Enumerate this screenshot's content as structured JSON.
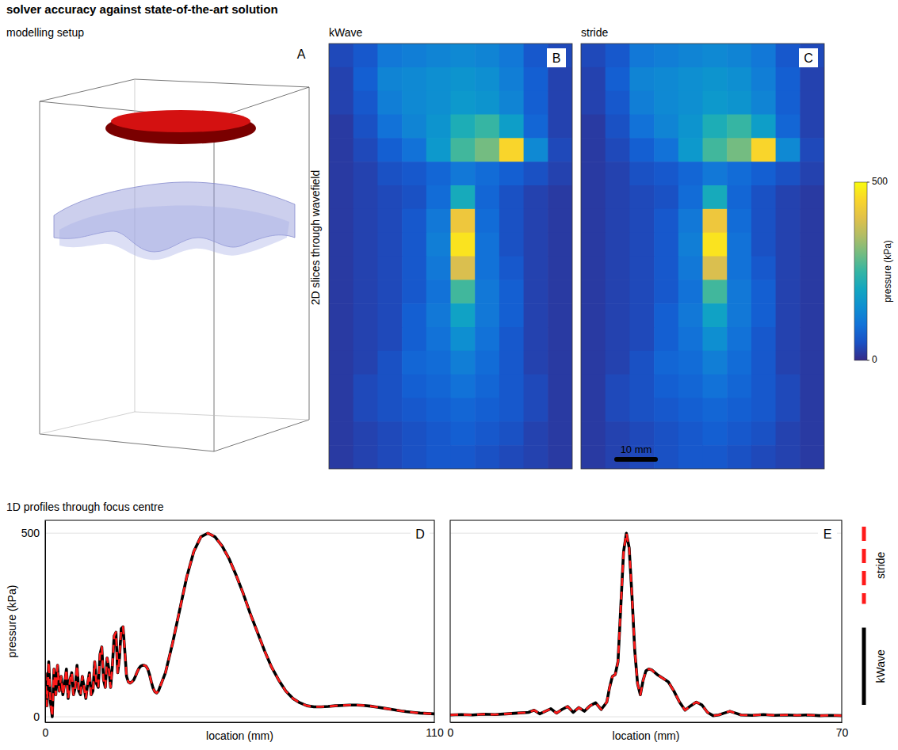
{
  "title": "solver accuracy against state-of-the-art solution",
  "sections": [
    "2D slices through wavefield",
    "1D profiles through focus centre"
  ],
  "setup": {
    "title": "modelling setup",
    "panel_label": "A"
  },
  "colorbar": {
    "range": [
      0,
      500
    ],
    "ticks": [
      0,
      500
    ],
    "label": "pressure (kPa)"
  },
  "chart_data": [
    {
      "type": "heatmap",
      "title": "kWave",
      "panel_label": "B",
      "tick_labels": false,
      "values": [
        [
          40,
          60,
          110,
          120,
          130,
          140,
          130,
          110,
          60,
          40
        ],
        [
          30,
          70,
          130,
          140,
          150,
          160,
          150,
          120,
          70,
          30
        ],
        [
          30,
          60,
          120,
          140,
          150,
          170,
          160,
          130,
          70,
          30
        ],
        [
          20,
          50,
          100,
          130,
          160,
          220,
          250,
          180,
          80,
          30
        ],
        [
          20,
          40,
          70,
          100,
          170,
          260,
          300,
          450,
          140,
          40
        ],
        [
          20,
          30,
          50,
          60,
          80,
          110,
          90,
          70,
          50,
          30
        ],
        [
          20,
          30,
          40,
          50,
          90,
          210,
          80,
          50,
          30,
          20
        ],
        [
          20,
          30,
          40,
          60,
          110,
          420,
          90,
          50,
          30,
          20
        ],
        [
          20,
          30,
          40,
          60,
          120,
          470,
          100,
          50,
          30,
          20
        ],
        [
          20,
          30,
          40,
          60,
          110,
          390,
          100,
          60,
          30,
          20
        ],
        [
          20,
          30,
          40,
          60,
          100,
          260,
          110,
          70,
          30,
          20
        ],
        [
          20,
          30,
          40,
          70,
          110,
          190,
          110,
          70,
          30,
          20
        ],
        [
          20,
          30,
          40,
          70,
          100,
          150,
          100,
          60,
          30,
          20
        ],
        [
          20,
          30,
          50,
          80,
          90,
          120,
          90,
          60,
          30,
          20
        ],
        [
          20,
          40,
          50,
          70,
          80,
          100,
          80,
          60,
          40,
          20
        ],
        [
          20,
          40,
          50,
          60,
          70,
          80,
          70,
          60,
          40,
          20
        ],
        [
          20,
          30,
          40,
          50,
          60,
          70,
          60,
          50,
          30,
          20
        ],
        [
          20,
          30,
          40,
          50,
          60,
          60,
          50,
          40,
          30,
          20
        ]
      ]
    },
    {
      "type": "heatmap",
      "title": "stride",
      "panel_label": "C",
      "tick_labels": false,
      "annotations": [
        "10 mm"
      ],
      "values": [
        [
          40,
          60,
          110,
          120,
          130,
          140,
          130,
          110,
          60,
          40
        ],
        [
          30,
          70,
          130,
          140,
          150,
          160,
          150,
          120,
          70,
          30
        ],
        [
          30,
          60,
          120,
          140,
          150,
          170,
          160,
          130,
          70,
          30
        ],
        [
          20,
          50,
          100,
          130,
          160,
          220,
          250,
          180,
          80,
          30
        ],
        [
          20,
          40,
          70,
          100,
          170,
          260,
          300,
          450,
          140,
          40
        ],
        [
          20,
          30,
          50,
          60,
          80,
          110,
          90,
          70,
          50,
          30
        ],
        [
          20,
          30,
          40,
          50,
          90,
          210,
          80,
          50,
          30,
          20
        ],
        [
          20,
          30,
          40,
          60,
          110,
          420,
          90,
          50,
          30,
          20
        ],
        [
          20,
          30,
          40,
          60,
          120,
          470,
          100,
          50,
          30,
          20
        ],
        [
          20,
          30,
          40,
          60,
          110,
          390,
          100,
          60,
          30,
          20
        ],
        [
          20,
          30,
          40,
          60,
          100,
          260,
          110,
          70,
          30,
          20
        ],
        [
          20,
          30,
          40,
          70,
          110,
          190,
          110,
          70,
          30,
          20
        ],
        [
          20,
          30,
          40,
          70,
          100,
          150,
          100,
          60,
          30,
          20
        ],
        [
          20,
          30,
          50,
          80,
          90,
          120,
          90,
          60,
          30,
          20
        ],
        [
          20,
          40,
          50,
          70,
          80,
          100,
          80,
          60,
          40,
          20
        ],
        [
          20,
          40,
          50,
          60,
          70,
          80,
          70,
          60,
          40,
          20
        ],
        [
          20,
          30,
          40,
          50,
          60,
          70,
          60,
          50,
          30,
          20
        ],
        [
          20,
          30,
          40,
          50,
          60,
          60,
          50,
          40,
          30,
          20
        ]
      ]
    },
    {
      "type": "line",
      "panel_label": "D",
      "xlabel": "location (mm)",
      "ylabel": "pressure (kPa)",
      "xlim": [
        0,
        110
      ],
      "ylim": [
        -15,
        535
      ],
      "xticks": [
        0,
        110
      ],
      "yticks": [
        0,
        500
      ],
      "grid": true,
      "x": [
        0,
        0.5,
        1,
        1.5,
        2,
        2.5,
        3,
        3.5,
        4,
        4.5,
        5,
        5.5,
        6,
        6.5,
        7,
        7.5,
        8,
        8.5,
        9,
        9.5,
        10,
        10.5,
        11,
        11.5,
        12,
        12.5,
        13,
        13.5,
        14,
        14.5,
        15,
        15.5,
        16,
        16.5,
        17,
        17.5,
        18,
        18.5,
        19,
        19.5,
        20,
        20.5,
        21,
        21.5,
        22,
        22.5,
        23,
        23.5,
        24,
        24.5,
        25,
        25.5,
        26,
        26.5,
        27,
        27.5,
        28,
        28.5,
        29,
        29.5,
        30,
        30.5,
        31,
        31.5,
        32,
        34,
        36,
        38,
        40,
        42,
        44,
        46,
        48,
        50,
        52,
        54,
        56,
        58,
        60,
        62,
        64,
        66,
        68,
        70,
        72,
        74,
        76,
        78,
        80,
        82,
        84,
        86,
        88,
        90,
        92,
        94,
        96,
        98,
        100,
        102,
        104,
        106,
        108,
        110
      ],
      "series": [
        {
          "color": "#000000",
          "line_style": "solid",
          "values": [
            120,
            30,
            150,
            40,
            0,
            130,
            60,
            140,
            70,
            110,
            60,
            90,
            130,
            50,
            100,
            120,
            60,
            80,
            140,
            70,
            60,
            110,
            80,
            50,
            90,
            120,
            60,
            70,
            150,
            90,
            80,
            170,
            190,
            100,
            80,
            160,
            130,
            80,
            140,
            220,
            230,
            120,
            160,
            240,
            245,
            180,
            110,
            95,
            92,
            95,
            100,
            110,
            122,
            132,
            138,
            140,
            140,
            138,
            130,
            115,
            95,
            78,
            68,
            65,
            70,
            120,
            200,
            290,
            380,
            450,
            490,
            500,
            490,
            465,
            430,
            385,
            335,
            280,
            230,
            180,
            135,
            100,
            70,
            50,
            38,
            30,
            27,
            27,
            28,
            30,
            31,
            32,
            32,
            31,
            29,
            26,
            23,
            20,
            17,
            14,
            12,
            10,
            9,
            8
          ]
        },
        {
          "color": "#ff1a1a",
          "line_style": "dashed",
          "values": [
            120,
            30,
            150,
            40,
            0,
            130,
            60,
            140,
            70,
            110,
            60,
            90,
            130,
            50,
            100,
            120,
            60,
            80,
            140,
            70,
            60,
            110,
            80,
            50,
            90,
            120,
            60,
            70,
            150,
            90,
            80,
            170,
            190,
            100,
            80,
            160,
            130,
            80,
            140,
            220,
            230,
            120,
            160,
            240,
            245,
            180,
            110,
            95,
            92,
            95,
            100,
            110,
            122,
            132,
            138,
            140,
            140,
            138,
            130,
            115,
            95,
            78,
            68,
            65,
            70,
            120,
            200,
            290,
            380,
            450,
            490,
            500,
            490,
            465,
            430,
            385,
            335,
            280,
            230,
            180,
            135,
            100,
            70,
            50,
            38,
            30,
            27,
            27,
            28,
            30,
            31,
            32,
            32,
            31,
            29,
            26,
            23,
            20,
            17,
            14,
            12,
            10,
            9,
            8
          ]
        }
      ]
    },
    {
      "type": "line",
      "panel_label": "E",
      "xlabel": "location (mm)",
      "tick_labels": "x",
      "legend": "right",
      "xlim": [
        0,
        70
      ],
      "ylim": [
        -15,
        535
      ],
      "xticks": [
        0,
        70
      ],
      "yticks": [
        0,
        500
      ],
      "grid": true,
      "x": [
        0,
        2,
        4,
        6,
        8,
        10,
        12,
        14,
        15,
        16,
        17,
        18,
        19,
        20,
        21,
        22,
        23,
        24,
        25,
        26,
        27,
        28,
        28.5,
        29,
        29.5,
        30,
        30.5,
        31,
        31.5,
        32,
        32.5,
        33,
        33.5,
        34,
        34.5,
        35,
        35.5,
        36,
        37,
        38,
        39,
        40,
        41,
        42,
        43,
        44,
        45,
        46,
        47,
        48,
        49,
        50,
        51,
        52,
        54,
        56,
        58,
        60,
        62,
        64,
        66,
        68,
        70
      ],
      "series": [
        {
          "name": "kWave",
          "color": "#000000",
          "line_style": "solid",
          "values": [
            5,
            6,
            5,
            7,
            6,
            8,
            10,
            12,
            18,
            8,
            15,
            22,
            10,
            20,
            28,
            12,
            25,
            15,
            30,
            38,
            20,
            40,
            80,
            110,
            115,
            150,
            300,
            450,
            500,
            460,
            330,
            180,
            90,
            60,
            100,
            125,
            130,
            128,
            115,
            105,
            95,
            70,
            40,
            18,
            30,
            40,
            32,
            12,
            3,
            5,
            10,
            15,
            10,
            5,
            4,
            6,
            4,
            5,
            4,
            5,
            3,
            4,
            3
          ]
        },
        {
          "name": "stride",
          "color": "#ff1a1a",
          "line_style": "dashed",
          "values": [
            5,
            6,
            5,
            7,
            6,
            8,
            10,
            12,
            18,
            8,
            15,
            22,
            10,
            20,
            28,
            12,
            25,
            15,
            30,
            38,
            20,
            40,
            80,
            110,
            115,
            150,
            300,
            450,
            500,
            460,
            330,
            180,
            90,
            60,
            100,
            125,
            130,
            128,
            115,
            105,
            95,
            70,
            40,
            18,
            30,
            40,
            32,
            12,
            3,
            5,
            10,
            15,
            10,
            5,
            4,
            6,
            4,
            5,
            4,
            5,
            3,
            4,
            3
          ]
        }
      ]
    }
  ]
}
